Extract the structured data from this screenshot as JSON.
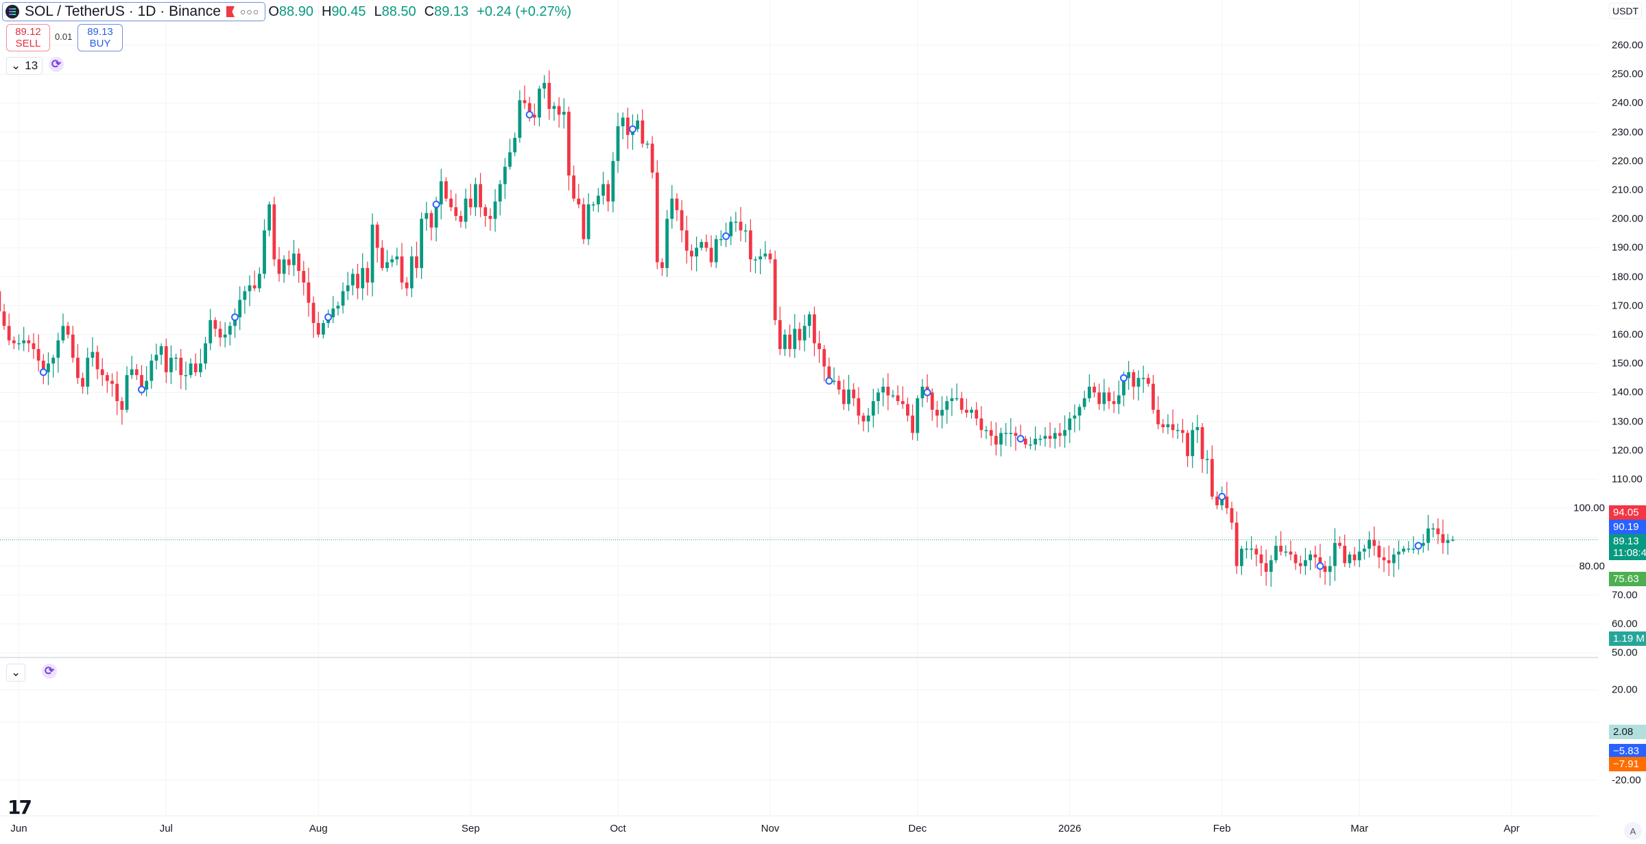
{
  "header": {
    "symbol_title": "SOL / TetherUS · 1D · Binance",
    "more_icon": "ellipsis-icon",
    "flag_icon": "flag-icon",
    "ohlc": {
      "o_label": "O",
      "o": "88.90",
      "h_label": "H",
      "h": "90.45",
      "l_label": "L",
      "l": "88.50",
      "c_label": "C",
      "c": "89.13",
      "change": "+0.24 (+0.27%)"
    }
  },
  "trade": {
    "sell_price": "89.12",
    "sell_label": "SELL",
    "spread": "0.01",
    "buy_price": "89.13",
    "buy_label": "BUY"
  },
  "indicators": {
    "count": "13",
    "collapse_icon": "chevron-down-icon",
    "sync_icon": "sync-icon"
  },
  "price_axis": {
    "currency": "USDT",
    "labels": [
      {
        "text": "94.05",
        "color": "#f23645"
      },
      {
        "text": "90.19",
        "color": "#2962ff"
      },
      {
        "text": "89.13",
        "sub": "11:08:4",
        "color": "#089981"
      },
      {
        "text": "75.63",
        "color": "#4caf50"
      },
      {
        "text": "1.19 M",
        "color": "#26a69a"
      }
    ]
  },
  "lower_pane": {
    "ticks": [
      "20.00",
      "-20.00"
    ],
    "labels": [
      {
        "text": "2.08",
        "color": "#b2dfdb",
        "text_color": "#131722"
      },
      {
        "text": "−5.83",
        "color": "#2962ff",
        "text_color": "#ffffff"
      },
      {
        "text": "−7.91",
        "color": "#ff6d00",
        "text_color": "#ffffff"
      }
    ]
  },
  "footer": {
    "auto_scale": "A",
    "logo_text": "TV"
  },
  "chart_data": {
    "type": "candlestick",
    "title": "SOL / TetherUS · 1D · Binance",
    "ylabel": "USDT",
    "ylim": [
      50,
      260
    ],
    "y_ticks": [
      "260.00",
      "250.00",
      "240.00",
      "230.00",
      "220.00",
      "210.00",
      "200.00",
      "190.00",
      "180.00",
      "170.00",
      "160.00",
      "150.00",
      "140.00",
      "130.00",
      "120.00",
      "110.00",
      "100.00",
      "80.00",
      "70.00",
      "60.00",
      "50.00"
    ],
    "x_ticks": [
      "Jun",
      "Jul",
      "Aug",
      "Sep",
      "Oct",
      "Nov",
      "Dec",
      "2026",
      "Feb",
      "Mar",
      "Apr"
    ],
    "grid": true,
    "colors": {
      "up": "#089981",
      "down": "#f23645",
      "marker": "#2962ff"
    },
    "last": {
      "open": 88.9,
      "high": 90.45,
      "low": 88.5,
      "close": 89.13
    },
    "first_open": 175,
    "closes_by_month": [
      {
        "month": "2025-05",
        "first_day": 28,
        "closes": [
          168,
          163,
          158,
          157
        ]
      },
      {
        "month": "2025-06",
        "first_day": 1,
        "closes": [
          157,
          158,
          157,
          155,
          151,
          147,
          150,
          152,
          158,
          163,
          160,
          152,
          145,
          142,
          152,
          154,
          148,
          146,
          144,
          143,
          137,
          134,
          146,
          148,
          146,
          141,
          144,
          151,
          153,
          156
        ]
      },
      {
        "month": "2025-07",
        "first_day": 1,
        "closes": [
          147,
          152,
          152,
          146,
          146,
          150,
          147,
          150,
          157,
          165,
          162,
          159,
          160,
          163,
          166,
          172,
          175,
          177,
          176,
          181,
          196,
          205,
          186,
          181,
          186,
          184,
          188,
          182,
          178,
          171,
          164
        ]
      },
      {
        "month": "2025-08",
        "first_day": 1,
        "closes": [
          160,
          164,
          166,
          169,
          170,
          175,
          177,
          181,
          176,
          183,
          178,
          198,
          190,
          183,
          185,
          186,
          187,
          178,
          176,
          187,
          183,
          200,
          202,
          197,
          205,
          213,
          207,
          204,
          201,
          199,
          207
        ]
      },
      {
        "month": "2025-09",
        "first_day": 1,
        "closes": [
          204,
          212,
          204,
          201,
          200,
          206,
          212,
          218,
          223,
          228,
          241,
          240,
          236,
          235,
          245,
          247,
          238,
          239,
          236,
          237,
          215,
          207,
          205,
          193,
          205,
          205,
          208,
          212,
          206,
          220
        ]
      },
      {
        "month": "2025-10",
        "first_day": 1,
        "closes": [
          232,
          235,
          229,
          231,
          234,
          226,
          226,
          216,
          185,
          183,
          200,
          207,
          203,
          196,
          189,
          187,
          190,
          192,
          190,
          185,
          193,
          193,
          194,
          199,
          199,
          196,
          196,
          186,
          186,
          187,
          188
        ]
      },
      {
        "month": "2025-11",
        "first_day": 1,
        "closes": [
          186,
          165,
          155,
          160,
          155,
          162,
          158,
          163,
          167,
          157,
          155,
          149,
          144,
          144,
          141,
          136,
          141,
          138,
          132,
          130,
          132,
          137,
          140,
          142,
          139,
          139,
          137,
          136,
          132,
          126
        ]
      },
      {
        "month": "2025-12",
        "first_day": 1,
        "closes": [
          138,
          142,
          140,
          134,
          132,
          134,
          137,
          138,
          138,
          134,
          133,
          134,
          131,
          127,
          127,
          125,
          122,
          126,
          126,
          126,
          125,
          124,
          122,
          122,
          124,
          124,
          125,
          124,
          126,
          125,
          127
        ]
      },
      {
        "month": "2026-01",
        "first_day": 1,
        "closes": [
          131,
          132,
          135,
          138,
          142,
          140,
          136,
          140,
          137,
          136,
          139,
          145,
          147,
          142,
          145,
          145,
          143,
          134,
          129,
          128,
          129,
          127,
          127,
          126,
          118,
          127,
          128,
          117,
          117,
          104,
          101
        ]
      },
      {
        "month": "2026-02",
        "first_day": 1,
        "closes": [
          104,
          100,
          95,
          80,
          86,
          86,
          86,
          84,
          81,
          78,
          82,
          87,
          85,
          85,
          84,
          81,
          80,
          82,
          84,
          83,
          80,
          78,
          80,
          88,
          87,
          81,
          84,
          82
        ]
      },
      {
        "month": "2026-03",
        "first_day": 1,
        "closes": [
          85,
          86,
          89,
          87,
          83,
          82,
          81,
          84,
          85,
          86,
          86,
          86,
          87,
          88,
          93,
          93,
          91,
          88,
          88.9,
          89.13
        ]
      }
    ],
    "markers": [
      "2025-06-06",
      "2025-06-26",
      "2025-07-15",
      "2025-08-03",
      "2025-08-25",
      "2025-09-13",
      "2025-10-04",
      "2025-10-23",
      "2025-11-13",
      "2025-12-03",
      "2025-12-22",
      "2026-01-12",
      "2026-02-01",
      "2026-02-21",
      "2026-03-13"
    ],
    "current_price": 89.13
  }
}
